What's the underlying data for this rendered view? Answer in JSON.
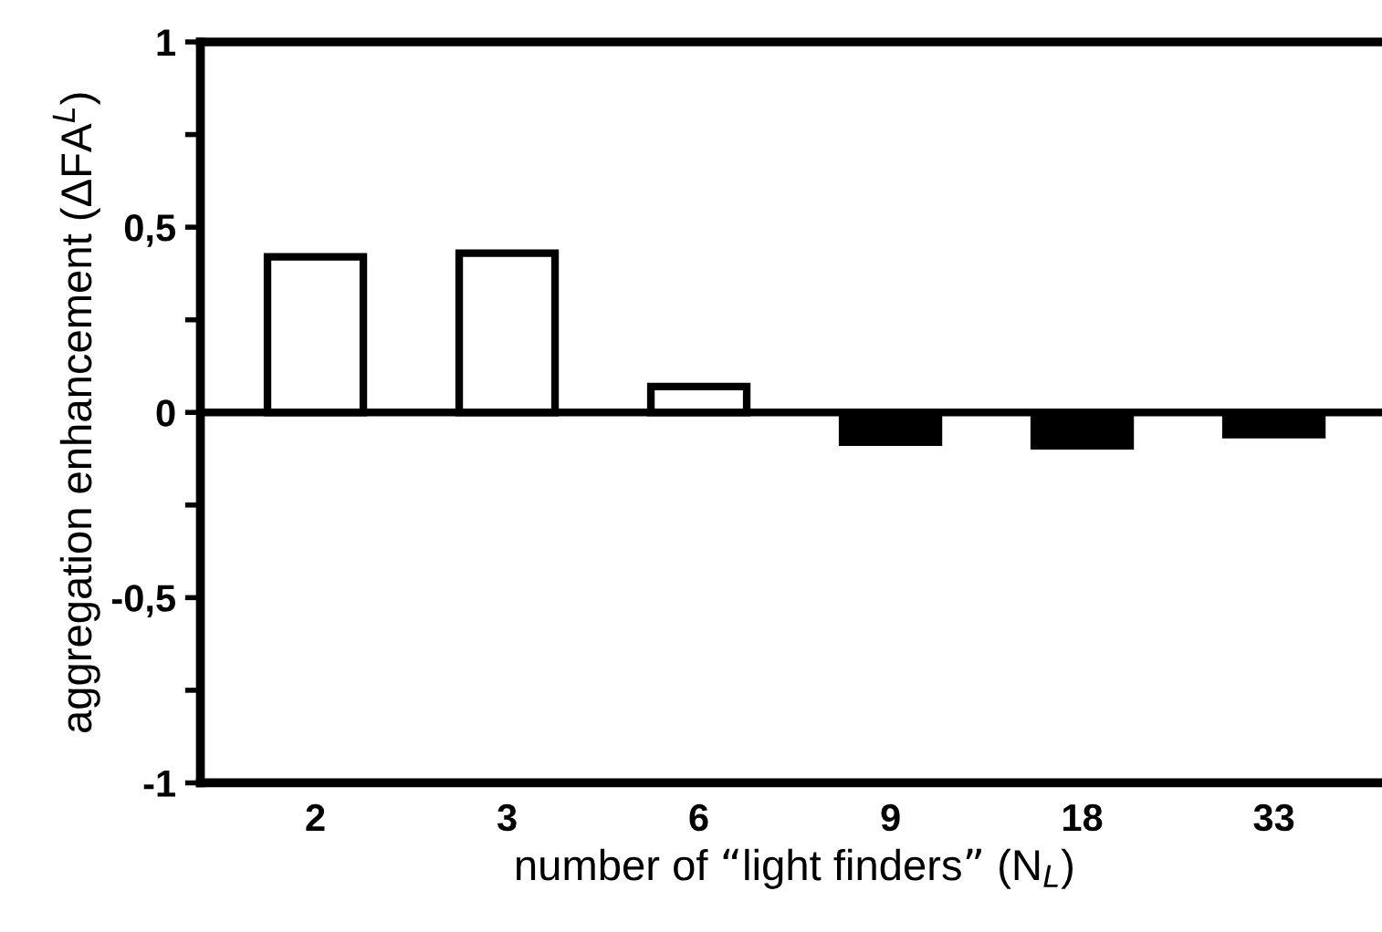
{
  "chart_data": {
    "type": "bar",
    "xlabel": "number of “light finders” (N$_{L}$)",
    "ylabel": "aggregation enhancement (ΔFA$^{L}$)",
    "categories": [
      "2",
      "3",
      "6",
      "9",
      "18",
      "33"
    ],
    "values": [
      0.42,
      0.43,
      0.07,
      -0.08,
      -0.09,
      -0.06
    ],
    "colors": [
      "#ffffff",
      "#ffffff",
      "#ffffff",
      "#000000",
      "#000000",
      "#000000"
    ],
    "ylim": [
      -1,
      1
    ],
    "yticks": [
      -1,
      {
        "value": -0.75,
        "label": null
      },
      {
        "value": -0.5,
        "label": "-0,5"
      },
      {
        "value": -0.25,
        "label": null
      },
      0,
      {
        "value": 0.25,
        "label": null
      },
      {
        "value": 0.5,
        "label": "0,5"
      },
      {
        "value": 0.75,
        "label": null
      },
      1
    ],
    "ref_lines": [
      {
        "axis": "y",
        "value": 0,
        "color": "#000000"
      }
    ],
    "grid": false,
    "legend": false
  }
}
